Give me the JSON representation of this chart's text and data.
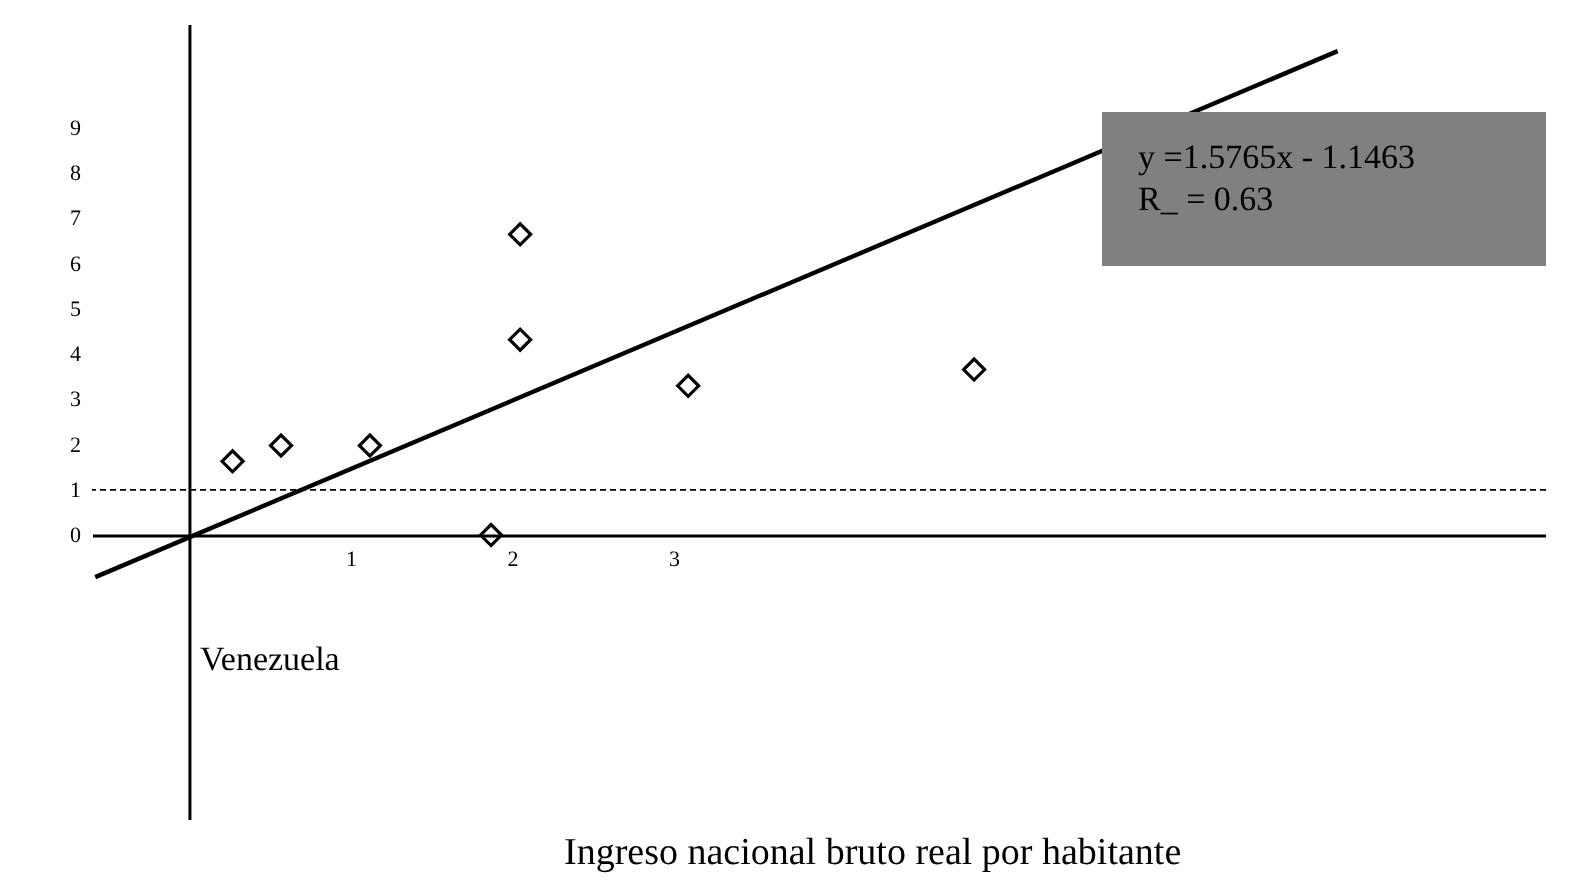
{
  "chart_data": {
    "type": "scatter",
    "xlabel": "Ingreso nacional bruto real por habitante",
    "xlim": [
      -0.6,
      8.4
    ],
    "ylim": [
      -6.3,
      11.3
    ],
    "xticks": [
      1,
      2,
      3
    ],
    "yticks": [
      0,
      1,
      2,
      3,
      4,
      5,
      6,
      7,
      8,
      9
    ],
    "grid": false,
    "series": [
      {
        "marker": "diamond",
        "color": "#000000",
        "x": [
          0.27,
          0.57,
          1.12,
          1.87,
          2.05,
          2.05,
          3.09,
          4.86
        ],
        "values": [
          1.63,
          1.98,
          1.98,
          0,
          4.32,
          6.65,
          3.3,
          3.66
        ]
      },
      {
        "type": "line",
        "color": "#000000",
        "x": [
          -0.58,
          7.11
        ],
        "values": [
          -0.93,
          10.7
        ]
      }
    ],
    "ref_lines": [
      {
        "axis": "y",
        "value": 1,
        "line_style": "dashed",
        "color": "#000000"
      }
    ],
    "annotations": [
      "y =1.5765x - 1.1463",
      "R_ = 0.63",
      "Venezuela"
    ]
  }
}
